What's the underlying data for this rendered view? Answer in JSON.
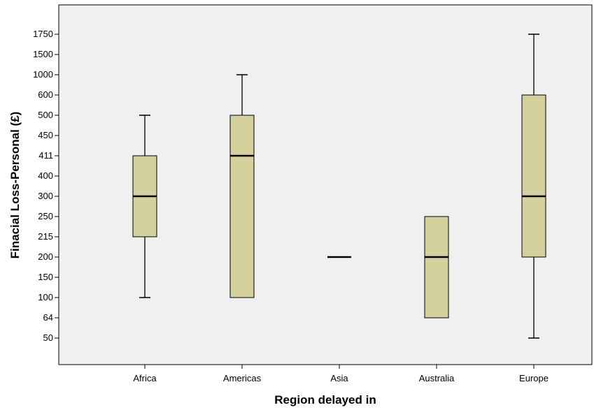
{
  "chart_data": {
    "type": "boxplot",
    "xlabel": "Region delayed in",
    "ylabel": "Finacial Loss-Personal (£)",
    "y_axis_type": "categorical-ordinal",
    "y_ticks": [
      "50",
      "64",
      "100",
      "150",
      "200",
      "215",
      "250",
      "300",
      "400",
      "411",
      "450",
      "500",
      "600",
      "1000",
      "1500",
      "1750"
    ],
    "categories": [
      "Africa",
      "Americas",
      "Asia",
      "Australia",
      "Europe"
    ],
    "boxes": [
      {
        "category": "Africa",
        "min": "100",
        "q1": "215",
        "median": "300",
        "q3": "411",
        "max": "500"
      },
      {
        "category": "Americas",
        "min": "100",
        "q1": "100",
        "median": "411",
        "q3": "500",
        "max": "1000"
      },
      {
        "category": "Asia",
        "min": "200",
        "q1": "200",
        "median": "200",
        "q3": "200",
        "max": "200"
      },
      {
        "category": "Australia",
        "min": "64",
        "q1": "64",
        "median": "200",
        "q3": "250",
        "max": "250"
      },
      {
        "category": "Europe",
        "min": "50",
        "q1": "200",
        "median": "300",
        "q3": "600",
        "max": "1750"
      }
    ],
    "grid": false,
    "legend": "none",
    "colors": {
      "box_fill": "#D5D19C",
      "plot_background": "#F0F0F0",
      "stroke": "#000000"
    }
  }
}
